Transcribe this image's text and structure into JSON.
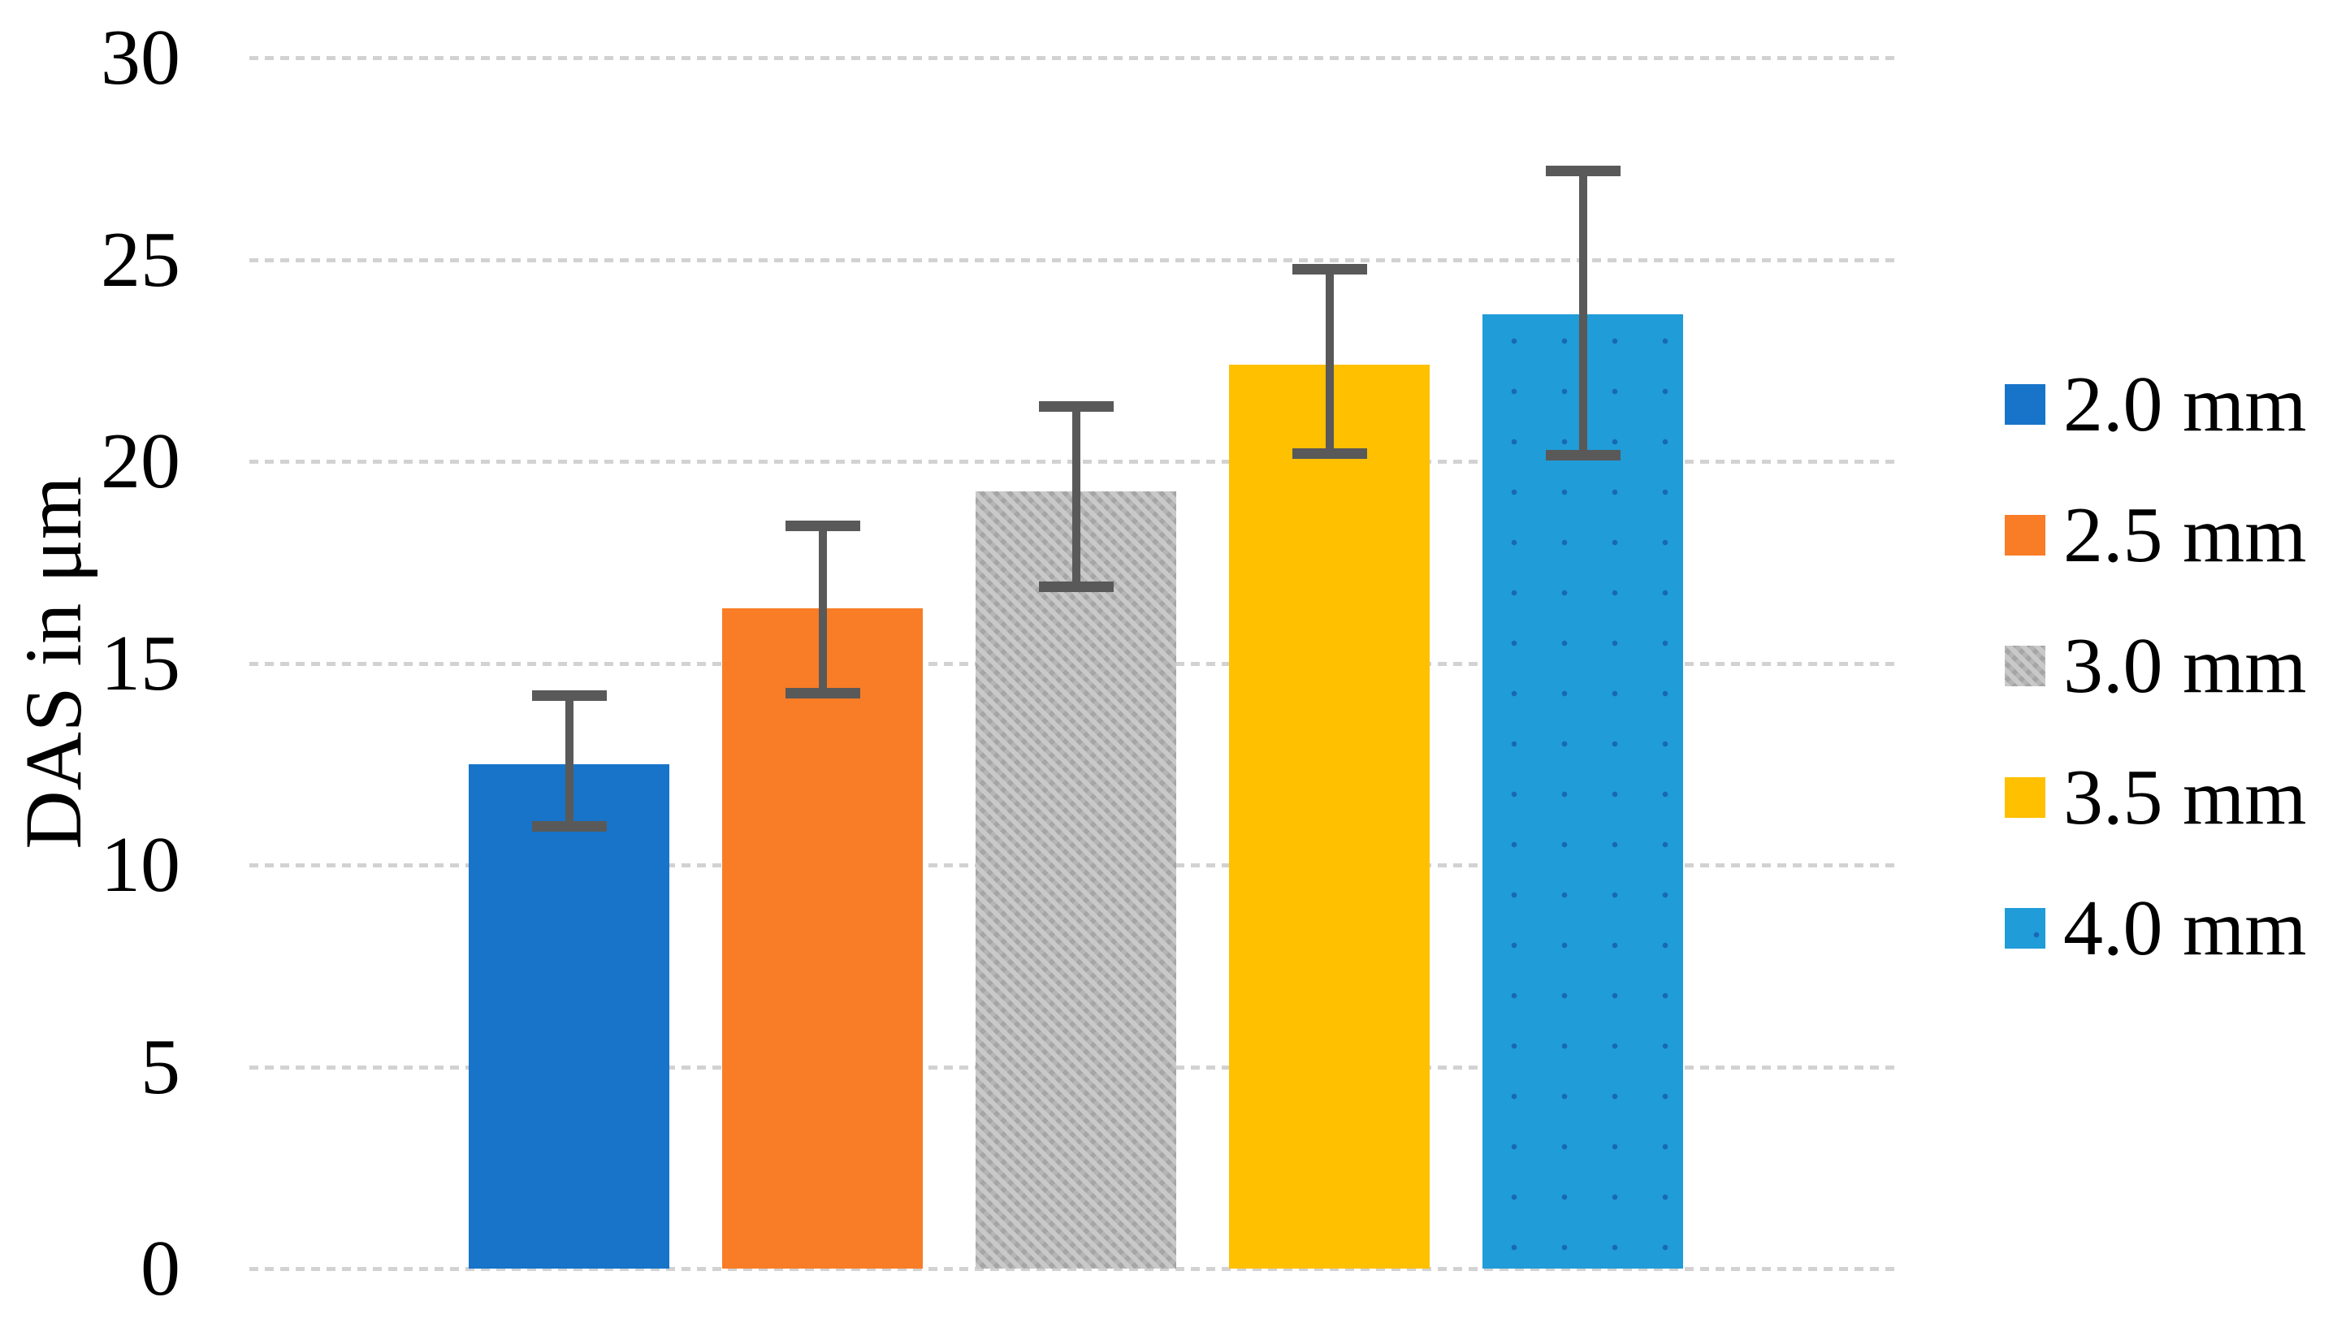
{
  "chart_data": {
    "type": "bar",
    "title": "",
    "xlabel": "",
    "ylabel": "DAS in μm",
    "ylim": [
      0,
      30
    ],
    "yticks": [
      0,
      5,
      10,
      15,
      20,
      25,
      30
    ],
    "grid": true,
    "gridline_color": "#d2d2d2",
    "legend_position": "right",
    "categories": [
      "2.0 mm",
      "2.5 mm",
      "3.0 mm",
      "3.5 mm",
      "4.0 mm"
    ],
    "series": [
      {
        "name": "DAS",
        "values": [
          12.5,
          16.35,
          19.25,
          22.4,
          23.65
        ],
        "error_low": [
          10.95,
          14.25,
          16.9,
          20.2,
          20.15
        ],
        "error_high": [
          14.2,
          18.4,
          21.35,
          24.75,
          27.2
        ]
      }
    ],
    "bar_fills": [
      "#1874c9",
      "#f97c27",
      "pattern-gray",
      "#ffc000",
      "dotted-blue"
    ],
    "error_bar_color": "#595959",
    "legend_items": [
      {
        "label": "2.0 mm",
        "fill": "#1874c9"
      },
      {
        "label": "2.5 mm",
        "fill": "#f97c27"
      },
      {
        "label": "3.0 mm",
        "fill": "pattern-gray"
      },
      {
        "label": "3.5 mm",
        "fill": "#ffc000"
      },
      {
        "label": "4.0 mm",
        "fill": "dotted-blue"
      }
    ]
  }
}
